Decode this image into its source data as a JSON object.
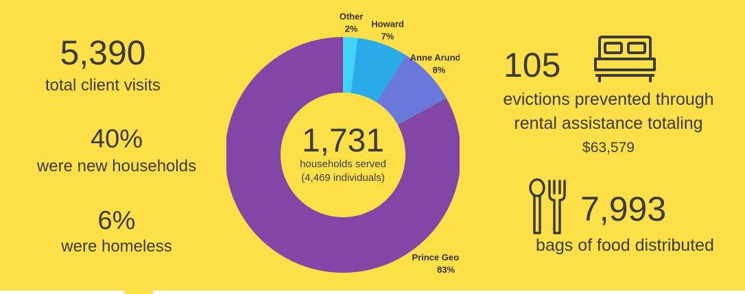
{
  "stats_left": [
    {
      "value": "5,390",
      "label": "total client visits"
    },
    {
      "value": "40%",
      "label": "were new households"
    },
    {
      "value": "6%",
      "label": "were homeless"
    }
  ],
  "center": {
    "value": "1,731",
    "line1": "households served",
    "line2": "(4,469 individuals)"
  },
  "evictions": {
    "value": "105",
    "line1": "evictions prevented through",
    "line2": "rental assistance totaling",
    "amount": "$63,579"
  },
  "food": {
    "value": "7,993",
    "label": "bags of food distributed"
  },
  "colors": {
    "background": "#fde047",
    "text": "#3a3a3a"
  },
  "icons": [
    "bed-icon",
    "spoon-fork-icon"
  ],
  "chart_data": {
    "type": "pie",
    "donut": true,
    "categories": [
      "Prince George's",
      "Anne Arundel",
      "Howard",
      "Other"
    ],
    "values": [
      83,
      8,
      7,
      2
    ],
    "percent_labels": [
      "83%",
      "8%",
      "7%",
      "2%"
    ],
    "colors": [
      "#8146a6",
      "#6a78dc",
      "#2aaae9",
      "#43d3f8"
    ]
  }
}
